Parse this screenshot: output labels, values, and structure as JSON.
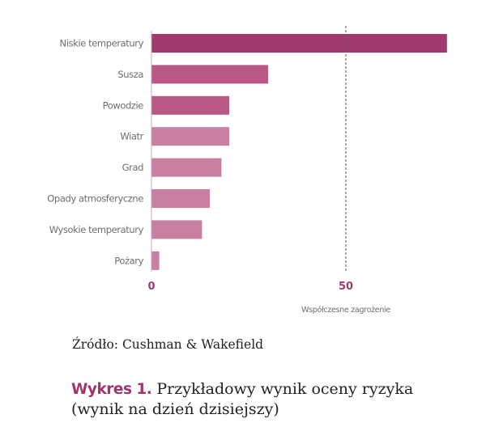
{
  "chart_data": {
    "type": "bar",
    "orientation": "horizontal",
    "categories": [
      "Niskie temperatury",
      "Susza",
      "Powodzie",
      "Wiatr",
      "Grad",
      "Opady atmosferyczne",
      "Wysokie temperatury",
      "Pożary"
    ],
    "values": [
      76,
      30,
      20,
      20,
      18,
      15,
      13,
      2
    ],
    "bar_colors": [
      "#a03a6c",
      "#b95785",
      "#b95785",
      "#c780a1",
      "#c780a1",
      "#c780a1",
      "#c780a1",
      "#c780a1"
    ],
    "xlim": [
      0,
      76
    ],
    "xticks": [
      "0",
      "50"
    ],
    "reference_line": 50,
    "xlabel": "Współczesne zagrożenie",
    "ylabel": "",
    "grid": false
  },
  "source_text": "Źródło: Cushman & Wakefield",
  "caption": {
    "number": "Wykres 1.",
    "line1": "Przykładowy wynik oceny ryzyka",
    "line2": "(wynik na dzień dzisiejszy)"
  },
  "colors": {
    "accent": "#a0356a",
    "axis": "#a23a6c",
    "text": "#6d6d6d"
  }
}
